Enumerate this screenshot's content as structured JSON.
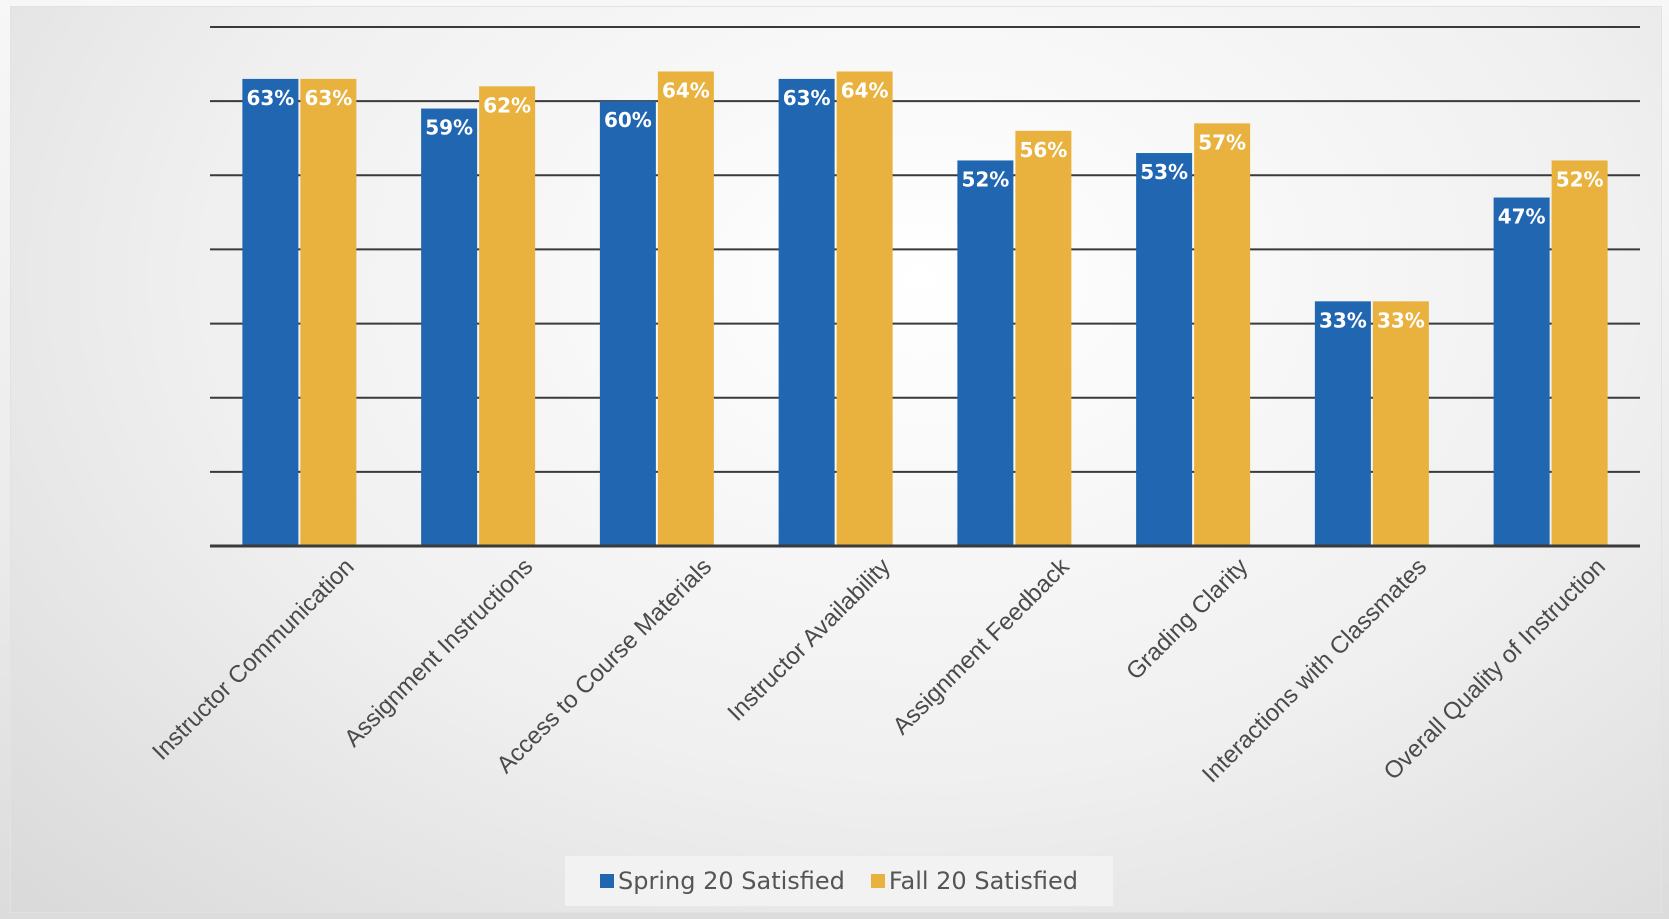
{
  "chart_data": {
    "type": "bar",
    "title": "",
    "xlabel": "",
    "ylabel": "",
    "ylim": [
      0,
      70
    ],
    "grid": true,
    "legend_position": "bottom",
    "categories": [
      "Instructor Communication",
      "Assignment Instructions",
      "Access to Course Materials",
      "Instructor Availability",
      "Assignment Feedback",
      "Grading Clarity",
      "Interactions with Classmates",
      "Overall Quality of Instruction"
    ],
    "series": [
      {
        "name": "Spring 20 Satisfied",
        "color": "#2066b0",
        "values": [
          63,
          59,
          60,
          63,
          52,
          53,
          33,
          47
        ],
        "labels": [
          "63%",
          "59%",
          "60%",
          "63%",
          "52%",
          "53%",
          "33%",
          "47%"
        ]
      },
      {
        "name": "Fall 20 Satisfied",
        "color": "#e9b23f",
        "values": [
          63,
          62,
          64,
          64,
          56,
          57,
          33,
          52
        ],
        "labels": [
          "63%",
          "62%",
          "64%",
          "64%",
          "56%",
          "57%",
          "33%",
          "52%"
        ]
      }
    ]
  }
}
